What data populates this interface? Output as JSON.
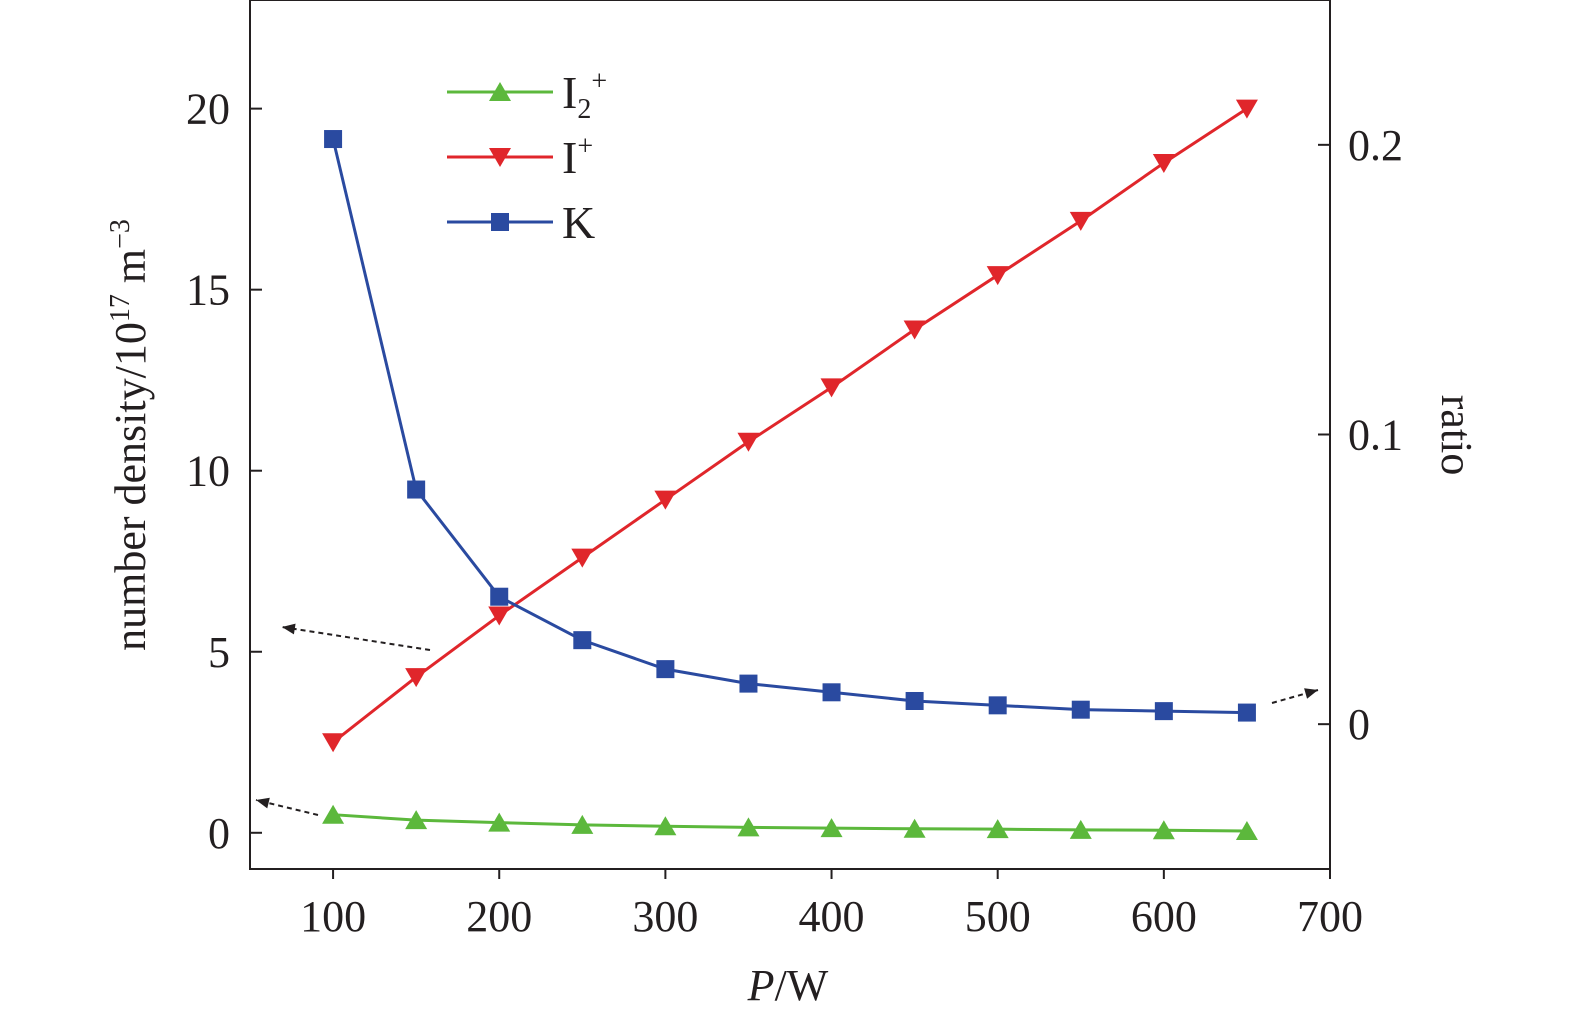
{
  "chart_data": {
    "type": "line",
    "x": [
      100,
      150,
      200,
      250,
      300,
      350,
      400,
      450,
      500,
      550,
      600,
      650
    ],
    "xlim": [
      50,
      700
    ],
    "x_ticks": [
      "100",
      "200",
      "300",
      "400",
      "500",
      "600",
      "700"
    ],
    "x_tick_values": [
      100,
      200,
      300,
      400,
      500,
      600,
      700
    ],
    "xlabel": {
      "italic": "P",
      "rest": "/W"
    },
    "y_left": {
      "label": {
        "main": "number density/10",
        "sup1": "17",
        "unit": " m",
        "sup2": "−3"
      },
      "lim": [
        -1,
        23
      ],
      "ticks": [
        "0",
        "5",
        "10",
        "15",
        "20"
      ],
      "tick_values": [
        0,
        5,
        10,
        15,
        20
      ]
    },
    "y_right": {
      "label": "ratio",
      "lim": [
        -0.05,
        0.25
      ],
      "ticks": [
        "0",
        "0.1",
        "0.2"
      ],
      "tick_values": [
        0,
        0.1,
        0.2
      ]
    },
    "series": [
      {
        "name": "I",
        "name_sub": "2",
        "name_sup": "+",
        "axis": "left",
        "marker": "triangle-up",
        "color": "#5cb83c",
        "values": [
          0.5,
          0.35,
          0.28,
          0.22,
          0.18,
          0.15,
          0.13,
          0.11,
          0.1,
          0.08,
          0.07,
          0.05
        ]
      },
      {
        "name": "I",
        "name_sub": "",
        "name_sup": "+",
        "axis": "left",
        "marker": "triangle-down",
        "color": "#e0262b",
        "values": [
          2.5,
          4.3,
          6.0,
          7.6,
          9.2,
          10.8,
          12.3,
          13.9,
          15.4,
          16.9,
          18.5,
          20.0
        ]
      },
      {
        "name": "K",
        "name_sub": "",
        "name_sup": "",
        "axis": "right",
        "marker": "square",
        "color": "#2a4aa0",
        "values": [
          0.202,
          0.081,
          0.044,
          0.029,
          0.019,
          0.014,
          0.011,
          0.008,
          0.0065,
          0.005,
          0.0045,
          0.004
        ]
      }
    ],
    "legend_position": "top-left"
  }
}
